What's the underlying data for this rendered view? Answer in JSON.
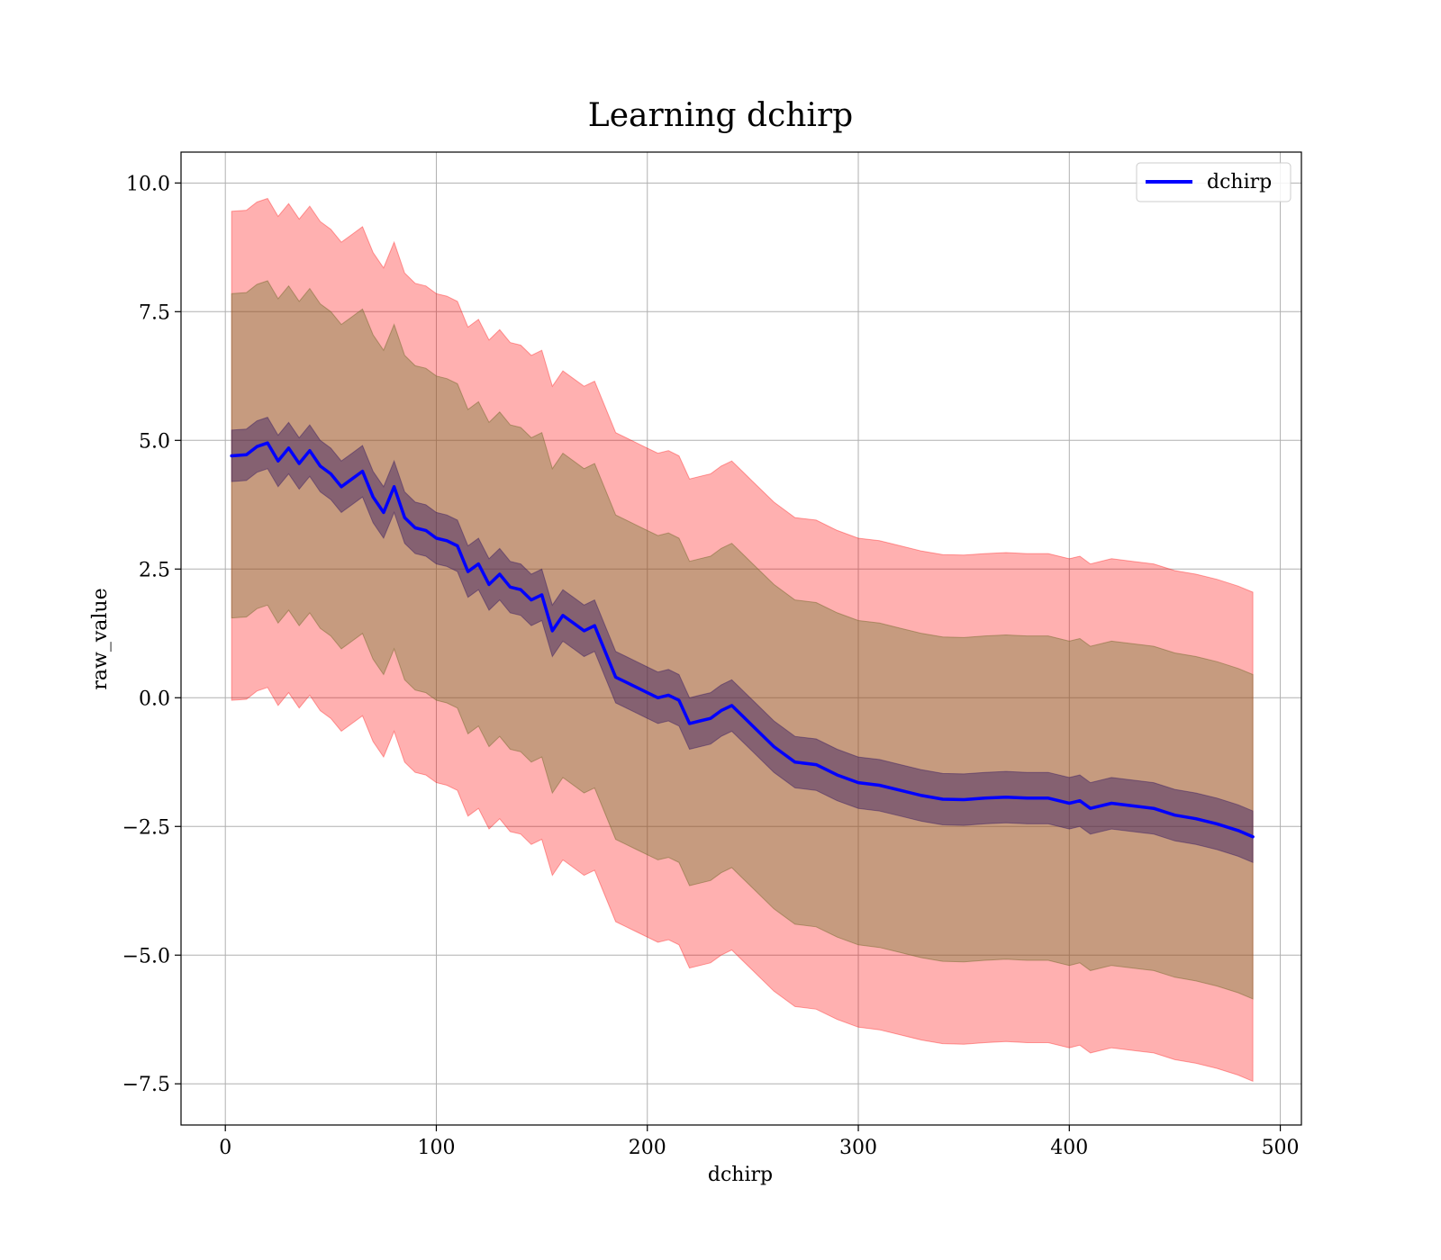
{
  "chart_data": {
    "type": "line",
    "title": "Learning dchirp",
    "xlabel": "dchirp",
    "ylabel": "raw_value",
    "xlim": [
      -21,
      510
    ],
    "ylim": [
      -8.3,
      10.6
    ],
    "xticks": [
      0,
      100,
      200,
      300,
      400,
      500
    ],
    "xtick_labels": [
      "0",
      "100",
      "200",
      "300",
      "400",
      "500"
    ],
    "yticks": [
      -7.5,
      -5.0,
      -2.5,
      0.0,
      2.5,
      5.0,
      7.5,
      10.0
    ],
    "ytick_labels": [
      "−7.5",
      "−5.0",
      "−2.5",
      "0.0",
      "2.5",
      "5.0",
      "7.5",
      "10.0"
    ],
    "grid": true,
    "legend": {
      "position": "top-right",
      "entries": [
        "dchirp"
      ]
    },
    "colors": {
      "line": "#0000ff",
      "outer_band": "#ff0000",
      "inner_band": "#2a1060"
    },
    "series": [
      {
        "name": "dchirp",
        "x": [
          3,
          10,
          15,
          20,
          25,
          30,
          35,
          40,
          45,
          50,
          55,
          60,
          65,
          70,
          75,
          80,
          85,
          90,
          95,
          100,
          105,
          110,
          115,
          120,
          125,
          130,
          135,
          140,
          145,
          150,
          155,
          160,
          165,
          170,
          175,
          180,
          185,
          190,
          195,
          200,
          205,
          210,
          215,
          220,
          225,
          230,
          235,
          240,
          245,
          250,
          260,
          270,
          280,
          290,
          300,
          310,
          320,
          330,
          340,
          350,
          360,
          370,
          380,
          390,
          400,
          405,
          410,
          420,
          430,
          440,
          450,
          460,
          470,
          480,
          487
        ],
        "y": [
          4.7,
          4.72,
          4.88,
          4.95,
          4.6,
          4.85,
          4.55,
          4.8,
          4.5,
          4.35,
          4.1,
          4.25,
          4.4,
          3.9,
          3.6,
          4.1,
          3.5,
          3.3,
          3.25,
          3.1,
          3.05,
          2.95,
          2.45,
          2.6,
          2.2,
          2.4,
          2.15,
          2.1,
          1.9,
          2.0,
          1.3,
          1.6,
          1.45,
          1.3,
          1.4,
          0.9,
          0.4,
          0.3,
          0.2,
          0.1,
          0.0,
          0.05,
          -0.05,
          -0.5,
          -0.45,
          -0.4,
          -0.25,
          -0.15,
          -0.35,
          -0.55,
          -0.95,
          -1.25,
          -1.3,
          -1.5,
          -1.65,
          -1.7,
          -1.8,
          -1.9,
          -1.97,
          -1.98,
          -1.95,
          -1.93,
          -1.95,
          -1.95,
          -2.05,
          -2.0,
          -2.15,
          -2.05,
          -2.1,
          -2.15,
          -2.28,
          -2.35,
          -2.45,
          -2.58,
          -2.7
        ],
        "inner_band_halfwidth": 0.5,
        "middle_band_halfwidth": 3.15,
        "outer_band_halfwidth": 4.75
      }
    ]
  }
}
